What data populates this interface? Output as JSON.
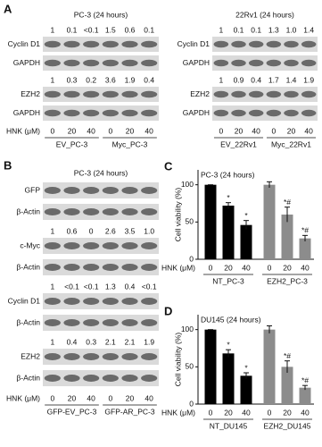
{
  "panel_a": {
    "letter": "A",
    "left": {
      "title": "PC-3 (24 hours)",
      "rows": [
        {
          "quant": [
            "1",
            "0.1",
            "<0.1",
            "1.5",
            "0.6",
            "0.1"
          ]
        },
        {
          "label": "Cyclin D1"
        },
        {
          "label": "GAPDH"
        },
        {
          "quant": [
            "1",
            "0.3",
            "0.2",
            "3.6",
            "1.9",
            "0.4"
          ]
        },
        {
          "label": "EZH2"
        },
        {
          "label": "GAPDH"
        }
      ],
      "hnk_label": "HNK (μM)",
      "lanes": [
        "0",
        "20",
        "40",
        "0",
        "20",
        "40"
      ],
      "groups": [
        "EV_PC-3",
        "Myc_PC-3"
      ]
    },
    "right": {
      "title": "22Rv1 (24 hours)",
      "rows": [
        {
          "quant": [
            "1",
            "0.1",
            "0.1",
            "1.3",
            "1.0",
            "1.4"
          ]
        },
        {
          "label": "Cyclin D1"
        },
        {
          "label": "GAPDH"
        },
        {
          "quant": [
            "1",
            "0.9",
            "0.4",
            "1.7",
            "1.4",
            "1.9"
          ]
        },
        {
          "label": "EZH2"
        },
        {
          "label": "GAPDH"
        }
      ],
      "lanes": [
        "0",
        "20",
        "40",
        "0",
        "20",
        "40"
      ],
      "groups": [
        "EV_22Rv1",
        "Myc_22Rv1"
      ]
    }
  },
  "panel_b": {
    "letter": "B",
    "blot": {
      "title": "PC-3 (24 hours)",
      "rows": [
        {
          "label": "GFP"
        },
        {
          "label": "β-Actin"
        },
        {
          "quant": [
            "1",
            "0.6",
            "0",
            "2.6",
            "3.5",
            "1.0"
          ]
        },
        {
          "label": "c-Myc"
        },
        {
          "label": "β-Actin"
        },
        {
          "quant": [
            "1",
            "<0.1",
            "<0.1",
            "1.3",
            "0.4",
            "<0.1"
          ]
        },
        {
          "label": "Cyclin D1"
        },
        {
          "label": "β-Actin"
        },
        {
          "quant": [
            "1",
            "0.4",
            "0.3",
            "2.1",
            "2.1",
            "1.9"
          ]
        },
        {
          "label": "EZH2"
        },
        {
          "label": "β-Actin"
        }
      ],
      "hnk_label": "HNK (μM)",
      "lanes": [
        "0",
        "20",
        "40",
        "0",
        "20",
        "40"
      ],
      "groups": [
        "GFP-EV_PC-3",
        "GFP-AR_PC-3"
      ]
    }
  },
  "chart_data": [
    {
      "type": "bar",
      "letter": "C",
      "title": "PC-3 (24 hours)",
      "y_label": "Cell viability (%)",
      "x_label": "HNK (μM)",
      "categories": [
        "0",
        "20",
        "40",
        "0",
        "20",
        "40"
      ],
      "groups": [
        "NT_PC-3",
        "EZH2_PC-3"
      ],
      "values": [
        100,
        72,
        46,
        100,
        60,
        28
      ],
      "errors": [
        0,
        4,
        6,
        4,
        10,
        4
      ],
      "annotations": [
        null,
        "*",
        "*",
        null,
        "*#",
        "*#"
      ],
      "colors": [
        "#000000",
        "#000000",
        "#000000",
        "#8c8c8c",
        "#8c8c8c",
        "#8c8c8c"
      ],
      "ylim": [
        0,
        120
      ],
      "yticks": [
        0,
        50,
        100
      ]
    },
    {
      "type": "bar",
      "letter": "D",
      "title": "DU145 (24 hours)",
      "y_label": "Cell viability (%)",
      "x_label": "HNK (μM)",
      "categories": [
        "0",
        "20",
        "40",
        "0",
        "20",
        "40"
      ],
      "groups": [
        "NT_DU145",
        "EZH2_DU145"
      ],
      "values": [
        100,
        68,
        38,
        100,
        50,
        22
      ],
      "errors": [
        0,
        5,
        4,
        5,
        8,
        3
      ],
      "annotations": [
        null,
        "*",
        "*",
        null,
        "*#",
        "*#"
      ],
      "colors": [
        "#000000",
        "#000000",
        "#000000",
        "#8c8c8c",
        "#8c8c8c",
        "#8c8c8c"
      ],
      "ylim": [
        0,
        120
      ],
      "yticks": [
        0,
        50,
        100
      ]
    }
  ]
}
